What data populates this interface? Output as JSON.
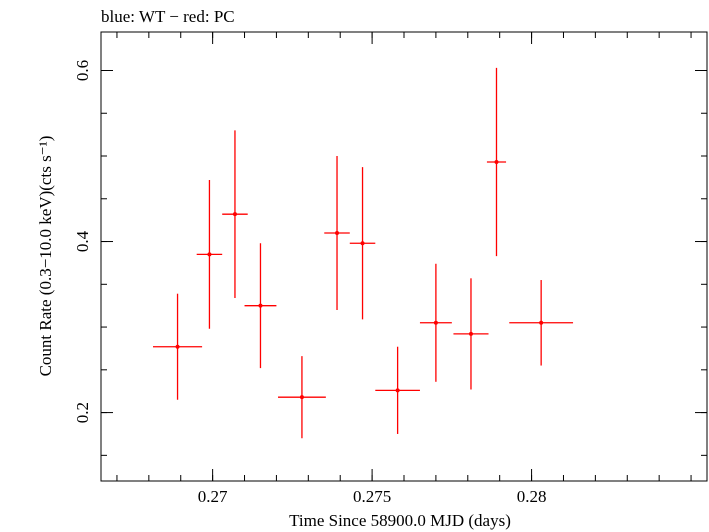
{
  "chart_data": {
    "type": "scatter",
    "title": "blue: WT − red: PC",
    "xlabel": "Time Since 58900.0 MJD (days)",
    "ylabel": "Count Rate (0.3−10.0 keV)(cts s⁻¹)",
    "xlim": [
      0.2665,
      0.2855
    ],
    "ylim": [
      0.12,
      0.645
    ],
    "x_ticks": [
      {
        "value": 0.27,
        "label": "0.27"
      },
      {
        "value": 0.275,
        "label": "0.275"
      },
      {
        "value": 0.28,
        "label": "0.28"
      }
    ],
    "y_ticks": [
      {
        "value": 0.2,
        "label": "0.2"
      },
      {
        "value": 0.4,
        "label": "0.4"
      },
      {
        "value": 0.6,
        "label": "0.6"
      }
    ],
    "grid": false,
    "series": [
      {
        "color": "#ff0000",
        "points": [
          {
            "x": 0.2689,
            "y": 0.277,
            "xerr": 0.00077,
            "yerr": 0.062
          },
          {
            "x": 0.2699,
            "y": 0.385,
            "xerr": 0.0004,
            "yerr": 0.087
          },
          {
            "x": 0.2707,
            "y": 0.432,
            "xerr": 0.0004,
            "yerr": 0.098
          },
          {
            "x": 0.2715,
            "y": 0.325,
            "xerr": 0.0005,
            "yerr": 0.073
          },
          {
            "x": 0.2728,
            "y": 0.218,
            "xerr": 0.00075,
            "yerr": 0.048
          },
          {
            "x": 0.2739,
            "y": 0.41,
            "xerr": 0.0004,
            "yerr": 0.09
          },
          {
            "x": 0.2747,
            "y": 0.398,
            "xerr": 0.0004,
            "yerr": 0.089
          },
          {
            "x": 0.2758,
            "y": 0.226,
            "xerr": 0.0007,
            "yerr": 0.051
          },
          {
            "x": 0.277,
            "y": 0.305,
            "xerr": 0.0005,
            "yerr": 0.069
          },
          {
            "x": 0.2781,
            "y": 0.292,
            "xerr": 0.00055,
            "yerr": 0.065
          },
          {
            "x": 0.2789,
            "y": 0.493,
            "xerr": 0.0003,
            "yerr": 0.11
          },
          {
            "x": 0.2803,
            "y": 0.305,
            "xerr": 0.001,
            "yerr": 0.05
          }
        ]
      }
    ]
  }
}
